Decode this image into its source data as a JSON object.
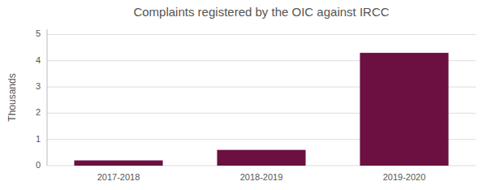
{
  "chart_data": {
    "type": "bar",
    "title": "Complaints registered by the OIC against IRCC",
    "categories": [
      "2017-2018",
      "2018-2019",
      "2019-2020"
    ],
    "values": [
      0.2,
      0.6,
      4.3
    ],
    "color": "#6B1040",
    "ylabel": "Thousands",
    "ylim": [
      0,
      5.2
    ],
    "yticks": [
      0,
      1,
      2,
      3,
      4,
      5
    ],
    "grid": true
  }
}
